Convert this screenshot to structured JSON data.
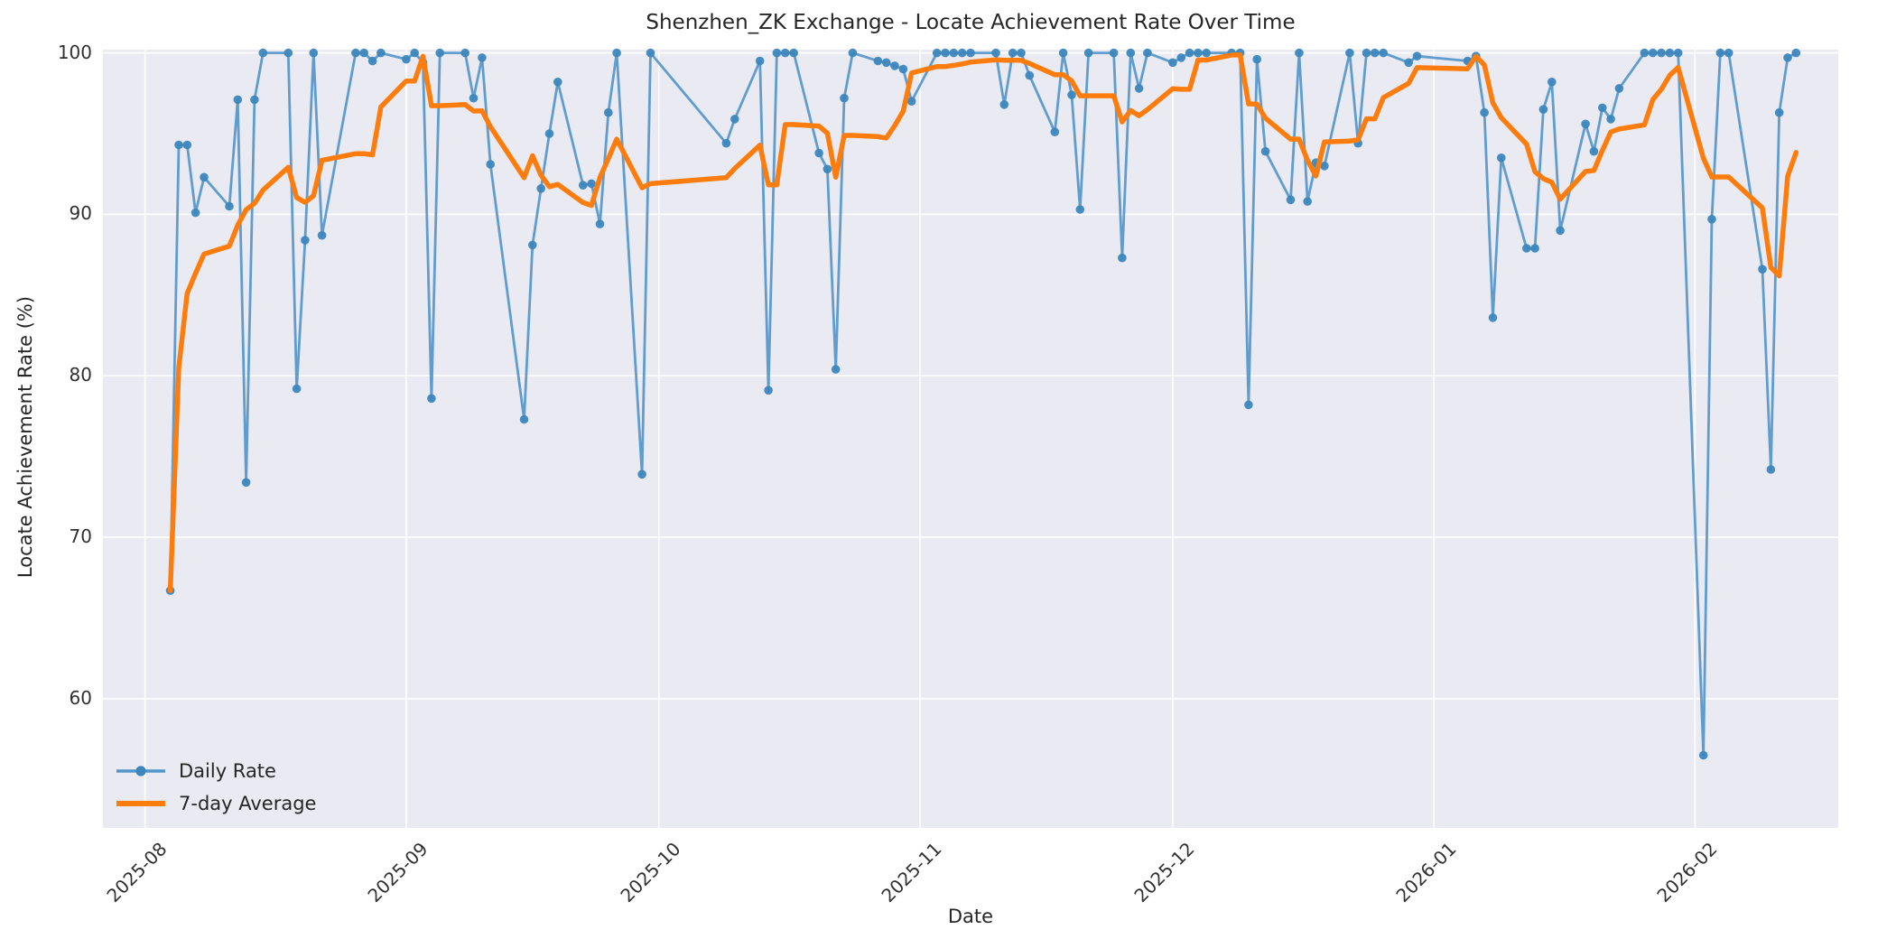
{
  "chart_data": {
    "type": "line",
    "title": "Shenzhen_ZK Exchange - Locate Achievement Rate Over Time",
    "xlabel": "Date",
    "ylabel": "Locate Achievement Rate (%)",
    "x_tick_labels": [
      "2025-08",
      "2025-09",
      "2025-10",
      "2025-11",
      "2025-12",
      "2026-01",
      "2026-02"
    ],
    "x_tick_dates": [
      "2025-08-01",
      "2025-09-01",
      "2025-10-01",
      "2025-11-01",
      "2025-12-01",
      "2026-01-01",
      "2026-02-01"
    ],
    "y_ticks": [
      60,
      70,
      80,
      90,
      100
    ],
    "ylim": [
      52.0,
      100.2
    ],
    "x_domain": [
      "2025-07-27",
      "2026-02-18"
    ],
    "grid": "on",
    "legend_position": "lower left",
    "style": {
      "figure_bg": "#ffffff",
      "axes_bg": "#eaeaf2",
      "grid_color": "#ffffff",
      "daily_line_color": "#5195ca",
      "daily_marker_color": "#3d87bd",
      "avg_line_color": "#fc7d0e",
      "text_color": "#262626"
    },
    "series": [
      {
        "name": "Daily Rate",
        "style": "line+marker",
        "points": [
          [
            "2025-08-04",
            66.7
          ],
          [
            "2025-08-05",
            94.3
          ],
          [
            "2025-08-06",
            94.3
          ],
          [
            "2025-08-07",
            90.1
          ],
          [
            "2025-08-08",
            92.3
          ],
          [
            "2025-08-11",
            90.5
          ],
          [
            "2025-08-12",
            97.1
          ],
          [
            "2025-08-13",
            73.4
          ],
          [
            "2025-08-14",
            97.1
          ],
          [
            "2025-08-15",
            100
          ],
          [
            "2025-08-18",
            100
          ],
          [
            "2025-08-19",
            79.2
          ],
          [
            "2025-08-20",
            88.4
          ],
          [
            "2025-08-21",
            100
          ],
          [
            "2025-08-22",
            88.7
          ],
          [
            "2025-08-26",
            100
          ],
          [
            "2025-08-27",
            100
          ],
          [
            "2025-08-28",
            99.5
          ],
          [
            "2025-08-29",
            100
          ],
          [
            "2025-09-01",
            99.6
          ],
          [
            "2025-09-02",
            100
          ],
          [
            "2025-09-03",
            99.4
          ],
          [
            "2025-09-04",
            78.6
          ],
          [
            "2025-09-05",
            100
          ],
          [
            "2025-09-08",
            100
          ],
          [
            "2025-09-09",
            97.2
          ],
          [
            "2025-09-10",
            99.7
          ],
          [
            "2025-09-11",
            93.1
          ],
          [
            "2025-09-15",
            77.3
          ],
          [
            "2025-09-16",
            88.1
          ],
          [
            "2025-09-17",
            91.6
          ],
          [
            "2025-09-18",
            95.0
          ],
          [
            "2025-09-19",
            98.2
          ],
          [
            "2025-09-22",
            91.8
          ],
          [
            "2025-09-23",
            91.9
          ],
          [
            "2025-09-24",
            89.4
          ],
          [
            "2025-09-25",
            96.3
          ],
          [
            "2025-09-26",
            100
          ],
          [
            "2025-09-29",
            73.9
          ],
          [
            "2025-09-30",
            100
          ],
          [
            "2025-10-09",
            94.4
          ],
          [
            "2025-10-10",
            95.9
          ],
          [
            "2025-10-13",
            99.5
          ],
          [
            "2025-10-14",
            79.1
          ],
          [
            "2025-10-15",
            100
          ],
          [
            "2025-10-16",
            100
          ],
          [
            "2025-10-17",
            100
          ],
          [
            "2025-10-20",
            93.8
          ],
          [
            "2025-10-21",
            92.8
          ],
          [
            "2025-10-22",
            80.4
          ],
          [
            "2025-10-23",
            97.2
          ],
          [
            "2025-10-24",
            100
          ],
          [
            "2025-10-27",
            99.5
          ],
          [
            "2025-10-28",
            99.4
          ],
          [
            "2025-10-29",
            99.2
          ],
          [
            "2025-10-30",
            99.0
          ],
          [
            "2025-10-31",
            97.0
          ],
          [
            "2025-11-03",
            100
          ],
          [
            "2025-11-04",
            100
          ],
          [
            "2025-11-05",
            100
          ],
          [
            "2025-11-06",
            100
          ],
          [
            "2025-11-07",
            100
          ],
          [
            "2025-11-10",
            100
          ],
          [
            "2025-11-11",
            96.8
          ],
          [
            "2025-11-12",
            100
          ],
          [
            "2025-11-13",
            100
          ],
          [
            "2025-11-14",
            98.6
          ],
          [
            "2025-11-17",
            95.1
          ],
          [
            "2025-11-18",
            100
          ],
          [
            "2025-11-19",
            97.4
          ],
          [
            "2025-11-20",
            90.3
          ],
          [
            "2025-11-21",
            100
          ],
          [
            "2025-11-24",
            100
          ],
          [
            "2025-11-25",
            87.3
          ],
          [
            "2025-11-26",
            100
          ],
          [
            "2025-11-27",
            97.8
          ],
          [
            "2025-11-28",
            100
          ],
          [
            "2025-12-01",
            99.4
          ],
          [
            "2025-12-02",
            99.7
          ],
          [
            "2025-12-03",
            100
          ],
          [
            "2025-12-04",
            100
          ],
          [
            "2025-12-05",
            100
          ],
          [
            "2025-12-08",
            100
          ],
          [
            "2025-12-09",
            100
          ],
          [
            "2025-12-10",
            78.2
          ],
          [
            "2025-12-11",
            99.6
          ],
          [
            "2025-12-12",
            93.9
          ],
          [
            "2025-12-15",
            90.9
          ],
          [
            "2025-12-16",
            100
          ],
          [
            "2025-12-17",
            90.8
          ],
          [
            "2025-12-18",
            93.2
          ],
          [
            "2025-12-19",
            93.0
          ],
          [
            "2025-12-22",
            100
          ],
          [
            "2025-12-23",
            94.4
          ],
          [
            "2025-12-24",
            100
          ],
          [
            "2025-12-25",
            100
          ],
          [
            "2025-12-26",
            100
          ],
          [
            "2025-12-29",
            99.4
          ],
          [
            "2025-12-30",
            99.8
          ],
          [
            "2026-01-05",
            99.5
          ],
          [
            "2026-01-06",
            99.8
          ],
          [
            "2026-01-07",
            96.3
          ],
          [
            "2026-01-08",
            83.6
          ],
          [
            "2026-01-09",
            93.5
          ],
          [
            "2026-01-12",
            87.9
          ],
          [
            "2026-01-13",
            87.9
          ],
          [
            "2026-01-14",
            96.5
          ],
          [
            "2026-01-15",
            98.2
          ],
          [
            "2026-01-16",
            89.0
          ],
          [
            "2026-01-19",
            95.6
          ],
          [
            "2026-01-20",
            93.9
          ],
          [
            "2026-01-21",
            96.6
          ],
          [
            "2026-01-22",
            95.9
          ],
          [
            "2026-01-23",
            97.8
          ],
          [
            "2026-01-26",
            100
          ],
          [
            "2026-01-27",
            100
          ],
          [
            "2026-01-28",
            100
          ],
          [
            "2026-01-29",
            100
          ],
          [
            "2026-01-30",
            100
          ],
          [
            "2026-02-02",
            56.5
          ],
          [
            "2026-02-03",
            89.7
          ],
          [
            "2026-02-04",
            100
          ],
          [
            "2026-02-05",
            100
          ],
          [
            "2026-02-09",
            86.6
          ],
          [
            "2026-02-10",
            74.2
          ],
          [
            "2026-02-11",
            96.3
          ],
          [
            "2026-02-12",
            99.7
          ],
          [
            "2026-02-13",
            100
          ]
        ]
      },
      {
        "name": "7-day Average",
        "style": "line",
        "derived_from": "Daily Rate",
        "window": 7,
        "note": "trailing 7-point rolling mean (min_periods=1) of Daily Rate"
      }
    ]
  }
}
